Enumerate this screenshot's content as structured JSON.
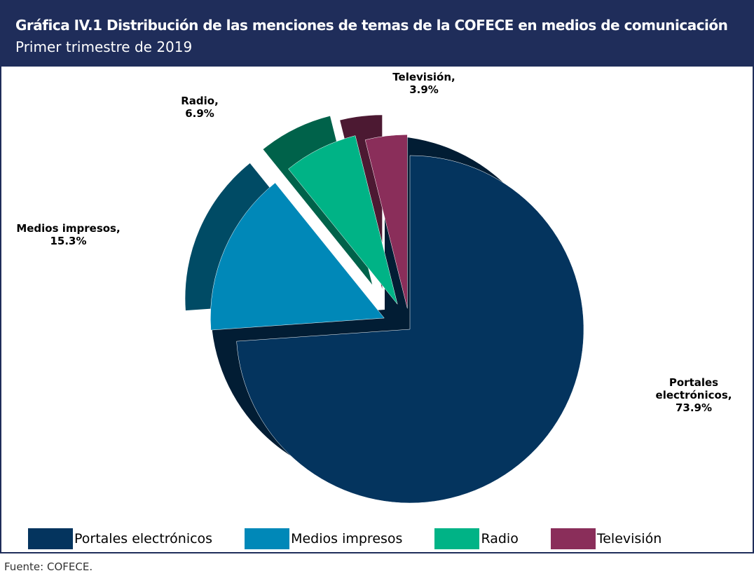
{
  "chart_data": {
    "type": "pie",
    "title": "Gráfica IV.1 Distribución de las menciones de temas de la COFECE en medios de comunicación",
    "subtitle": "Primer trimestre de 2019",
    "categories": [
      "Portales electrónicos",
      "Medios impresos",
      "Radio",
      "Televisión"
    ],
    "values": [
      73.9,
      15.3,
      6.9,
      3.9
    ],
    "value_labels": [
      "73.9%",
      "15.3%",
      "6.9%",
      "3.9%"
    ],
    "label_names": [
      "Portales electrónicos,",
      "Medios impresos,",
      "Radio,",
      "Televisión,"
    ],
    "colors": [
      "#04345e",
      "#0088b8",
      "#00b386",
      "#8a2e5a"
    ],
    "legend": "bottom",
    "source": "Fuente: COFECE."
  }
}
